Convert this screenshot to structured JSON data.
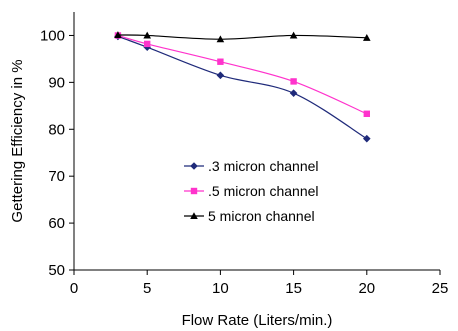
{
  "chart_data": {
    "type": "line",
    "title": "",
    "xlabel": "Flow Rate (Liters/min.)",
    "ylabel": "Gettering Efficiency in %",
    "xlim": [
      0,
      25
    ],
    "ylim": [
      50,
      105
    ],
    "xticks": [
      0,
      5,
      10,
      15,
      20,
      25
    ],
    "yticks": [
      50,
      60,
      70,
      80,
      90,
      100
    ],
    "grid": false,
    "legend_position": "bottom-right",
    "series": [
      {
        "name": ".3 micron channel",
        "color": "#1F2A7A",
        "marker": "diamond",
        "x": [
          3,
          5,
          10,
          15,
          20
        ],
        "y": [
          99.8,
          97.5,
          91.5,
          87.7,
          78.0
        ]
      },
      {
        "name": ".5 micron channel",
        "color": "#FF33CC",
        "marker": "square",
        "x": [
          3,
          5,
          10,
          15,
          20
        ],
        "y": [
          100.0,
          98.2,
          94.4,
          90.2,
          83.3
        ]
      },
      {
        "name": "5 micron channel",
        "color": "#000000",
        "marker": "triangle",
        "x": [
          3,
          5,
          10,
          15,
          20
        ],
        "y": [
          100.1,
          100.0,
          99.2,
          100.0,
          99.5
        ]
      }
    ]
  }
}
